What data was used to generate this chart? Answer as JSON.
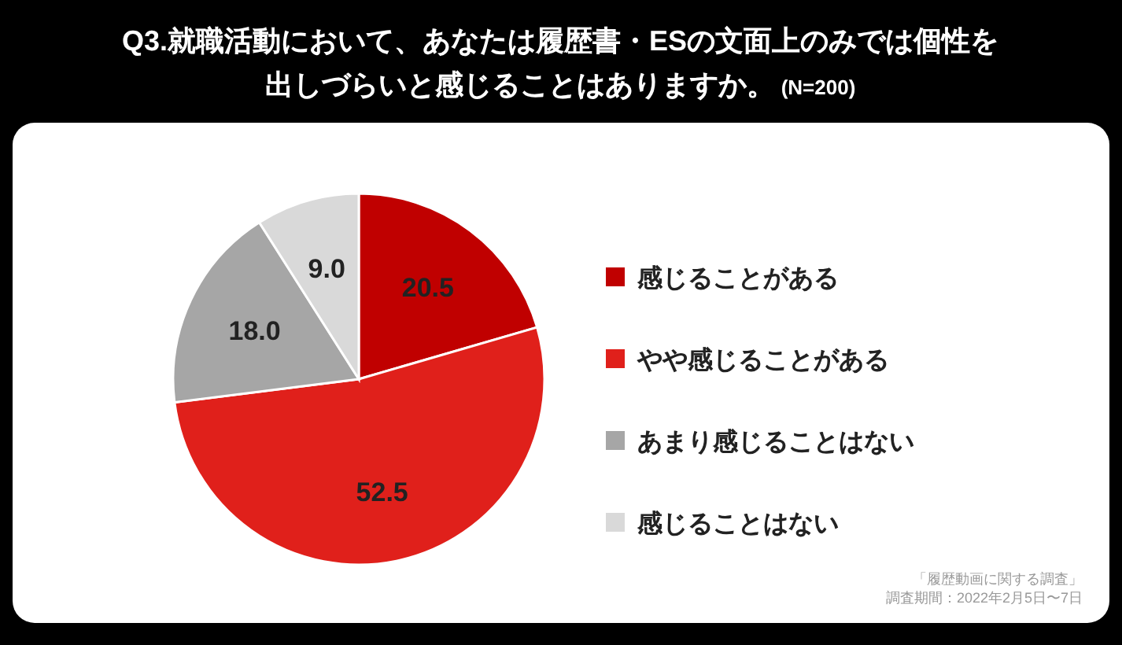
{
  "chart_data": {
    "type": "pie",
    "title": "Q3.就職活動において、あなたは履歴書・ESの文面上のみでは個性を出しづらいと感じることはありますか。",
    "subtitle": "(N=200)",
    "categories": [
      "感じることがある",
      "やや感じることがある",
      "あまり感じることはない",
      "感じることはない"
    ],
    "values": [
      20.5,
      52.5,
      18.0,
      9.0
    ],
    "value_labels": [
      "20.5",
      "52.5",
      "18.0",
      "9.0"
    ],
    "colors": [
      "#c00000",
      "#e0201b",
      "#a6a6a6",
      "#d9d9d9"
    ],
    "legend": "right",
    "annotations": [
      "「履歴動画に関する調査」",
      "調査期間：2022年2月5日〜7日"
    ]
  }
}
